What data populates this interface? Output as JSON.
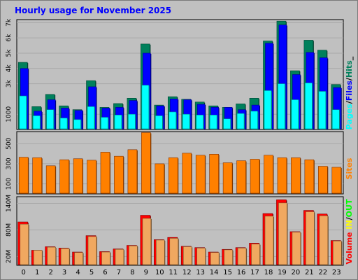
{
  "title": "Hourly usage for November 2025",
  "colors": {
    "background": "#c0c0c0",
    "plot_bg": "#c0c0c0",
    "title": "#0000ff",
    "hits": "#00805c",
    "files": "#0000ff",
    "pages": "#00ffff",
    "sites": "#ff8000",
    "volume": "#ff0000",
    "volume_in": "#f0a860",
    "legend_in": "#ffff00",
    "legend_out": "#00ff00"
  },
  "chart_data": [
    {
      "type": "bar",
      "name": "requests",
      "categories": [
        "0",
        "1",
        "2",
        "3",
        "4",
        "5",
        "6",
        "7",
        "8",
        "9",
        "10",
        "11",
        "12",
        "13",
        "14",
        "15",
        "16",
        "17",
        "18",
        "19",
        "20",
        "21",
        "22",
        "23"
      ],
      "y_ticks": [
        "1000",
        "3k",
        "4k",
        "5k",
        "6k",
        "7k"
      ],
      "y_tick_values": [
        1000,
        3000,
        4000,
        5000,
        6000,
        7000
      ],
      "ylim": [
        0,
        7200
      ],
      "legend": [
        "Pages",
        "Files",
        "Hits"
      ],
      "series": [
        {
          "name": "Hits",
          "color": "#00805c",
          "values": [
            4400,
            1500,
            2300,
            1550,
            1300,
            3200,
            1450,
            1700,
            2050,
            5600,
            1600,
            2150,
            1980,
            1800,
            1550,
            1450,
            1680,
            2050,
            5800,
            7100,
            3850,
            5850,
            5200,
            2950
          ]
        },
        {
          "name": "Files",
          "color": "#0000ff",
          "values": [
            4000,
            1200,
            1950,
            1400,
            1250,
            2800,
            1400,
            1450,
            1900,
            5000,
            1550,
            2000,
            1950,
            1650,
            1450,
            1450,
            1300,
            1600,
            5650,
            6850,
            3600,
            5050,
            4700,
            2750
          ]
        },
        {
          "name": "Pages",
          "color": "#00ffff",
          "values": [
            2200,
            900,
            1300,
            750,
            650,
            1500,
            800,
            950,
            1000,
            2900,
            900,
            1150,
            1000,
            950,
            950,
            700,
            1050,
            1200,
            2550,
            3000,
            1950,
            3050,
            2500,
            1300
          ]
        }
      ]
    },
    {
      "type": "bar",
      "name": "sites",
      "categories": [
        "0",
        "1",
        "2",
        "3",
        "4",
        "5",
        "6",
        "7",
        "8",
        "9",
        "10",
        "11",
        "12",
        "13",
        "14",
        "15",
        "16",
        "17",
        "18",
        "19",
        "20",
        "21",
        "22",
        "23"
      ],
      "y_ticks": [
        "100",
        "300",
        "500"
      ],
      "y_tick_values": [
        100,
        300,
        500
      ],
      "ylim": [
        0,
        620
      ],
      "legend": [
        "Sites"
      ],
      "series": [
        {
          "name": "Sites",
          "color": "#ff8000",
          "values": [
            365,
            360,
            280,
            340,
            350,
            335,
            415,
            375,
            440,
            610,
            300,
            360,
            405,
            385,
            395,
            310,
            330,
            345,
            385,
            360,
            360,
            340,
            275,
            265
          ]
        }
      ]
    },
    {
      "type": "bar",
      "name": "volume",
      "categories": [
        "0",
        "1",
        "2",
        "3",
        "4",
        "5",
        "6",
        "7",
        "8",
        "9",
        "10",
        "11",
        "12",
        "13",
        "14",
        "15",
        "16",
        "17",
        "18",
        "19",
        "20",
        "21",
        "22",
        "23"
      ],
      "y_ticks": [
        "20M",
        "80M",
        "140M"
      ],
      "y_tick_values": [
        20,
        80,
        140
      ],
      "ylim": [
        0,
        155
      ],
      "legend": [
        "Volume",
        "IN",
        "OUT"
      ],
      "series": [
        {
          "name": "Volume",
          "color": "#ff0000",
          "values": [
            98,
            34,
            42,
            39,
            30,
            67,
            31,
            37,
            45,
            113,
            58,
            63,
            43,
            40,
            30,
            36,
            40,
            50,
            117,
            148,
            76,
            124,
            116,
            56
          ]
        },
        {
          "name": "IN",
          "color": "#f0a860",
          "values": [
            93,
            34,
            41,
            38,
            29,
            65,
            30,
            36,
            44,
            106,
            57,
            61,
            42,
            39,
            29,
            35,
            39,
            48,
            111,
            141,
            75,
            121,
            112,
            55
          ]
        }
      ]
    }
  ]
}
